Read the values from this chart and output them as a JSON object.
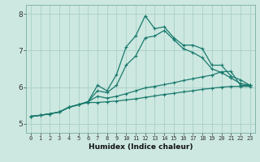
{
  "title": "",
  "xlabel": "Humidex (Indice chaleur)",
  "background_color": "#cce8e0",
  "grid_color": "#aacfc8",
  "line_color": "#1a7a6e",
  "xlim": [
    -0.5,
    23.5
  ],
  "ylim": [
    4.75,
    8.25
  ],
  "yticks": [
    5,
    6,
    7,
    8
  ],
  "xticks": [
    0,
    1,
    2,
    3,
    4,
    5,
    6,
    7,
    8,
    9,
    10,
    11,
    12,
    13,
    14,
    15,
    16,
    17,
    18,
    19,
    20,
    21,
    22,
    23
  ],
  "lines": [
    [
      5.2,
      5.23,
      5.27,
      5.32,
      5.45,
      5.52,
      5.6,
      6.05,
      5.9,
      6.35,
      7.1,
      7.4,
      7.95,
      7.6,
      7.65,
      7.35,
      7.15,
      7.15,
      7.05,
      6.6,
      6.6,
      6.3,
      6.2,
      6.05
    ],
    [
      5.2,
      5.23,
      5.27,
      5.32,
      5.45,
      5.52,
      5.6,
      5.9,
      5.85,
      6.05,
      6.6,
      6.85,
      7.35,
      7.4,
      7.55,
      7.3,
      7.05,
      6.95,
      6.8,
      6.5,
      6.4,
      6.25,
      6.1,
      6.05
    ],
    [
      5.2,
      5.23,
      5.27,
      5.32,
      5.45,
      5.52,
      5.6,
      5.75,
      5.7,
      5.75,
      5.82,
      5.9,
      5.98,
      6.02,
      6.07,
      6.12,
      6.18,
      6.23,
      6.28,
      6.33,
      6.42,
      6.43,
      6.05,
      6.05
    ],
    [
      5.2,
      5.23,
      5.27,
      5.32,
      5.45,
      5.52,
      5.58,
      5.58,
      5.6,
      5.62,
      5.65,
      5.68,
      5.72,
      5.76,
      5.8,
      5.83,
      5.87,
      5.9,
      5.94,
      5.97,
      6.0,
      6.02,
      6.02,
      6.02
    ]
  ]
}
